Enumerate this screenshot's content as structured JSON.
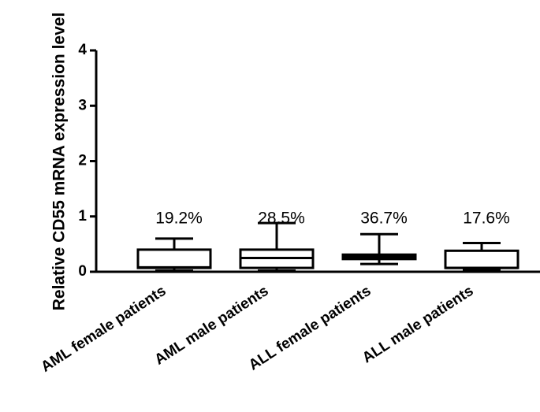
{
  "chart_data": {
    "type": "box",
    "y_label": "Relative CD55 mRNA expression level",
    "categories": [
      "AML female patients",
      "AML male patients",
      "ALL female patients",
      "ALL male patients"
    ],
    "min": [
      0.02,
      0.02,
      0.14,
      0.03
    ],
    "q1": [
      0.07,
      0.07,
      0.23,
      0.07
    ],
    "median": [
      0.08,
      0.25,
      0.27,
      0.07
    ],
    "q3": [
      0.4,
      0.4,
      0.31,
      0.38
    ],
    "max": [
      0.6,
      0.88,
      0.68,
      0.52
    ],
    "annotations": [
      "19.2%",
      "28.5%",
      "36.7%",
      "17.6%"
    ],
    "color": "#000000",
    "ylim": [
      0,
      4
    ],
    "yticks": [
      0,
      1,
      2,
      3,
      4
    ]
  }
}
